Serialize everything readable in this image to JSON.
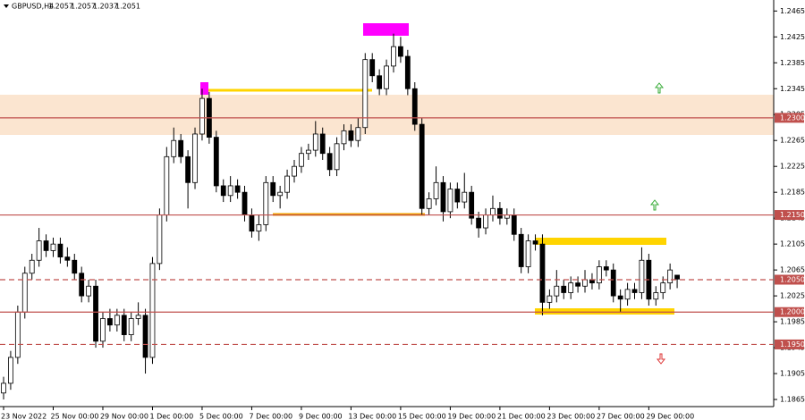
{
  "chart_data": {
    "type": "candlestick",
    "symbol": "GBPUSD,H4",
    "up_color": "#ffffff",
    "down_color": "#000000",
    "wick_color": "#000000",
    "ylim": [
      1.1854,
      1.2482
    ],
    "yticks": [
      1.2465,
      1.2425,
      1.2385,
      1.2345,
      1.2305,
      1.2265,
      1.2225,
      1.2185,
      1.2145,
      1.2105,
      1.2065,
      1.2025,
      1.1985,
      1.1945,
      1.1905,
      1.1865
    ],
    "levels": [
      {
        "value": 1.23,
        "label": "1.2300",
        "dashed": false,
        "color": "#c0504d"
      },
      {
        "value": 1.215,
        "label": "1.2150",
        "dashed": false,
        "color": "#c0504d"
      },
      {
        "value": 1.205,
        "label": "1.2050",
        "dashed": true,
        "color": "#c0504d"
      },
      {
        "value": 1.2,
        "label": "1.2000",
        "dashed": false,
        "color": "#c0504d"
      },
      {
        "value": 1.195,
        "label": "1.1950",
        "dashed": true,
        "color": "#c0504d"
      }
    ],
    "categories": [
      "23 Nov 2022",
      null,
      null,
      null,
      null,
      null,
      null,
      "25 Nov 00:00",
      null,
      null,
      null,
      null,
      null,
      null,
      "29 Nov 00:00",
      null,
      null,
      null,
      null,
      null,
      null,
      "1 Dec 00:00",
      null,
      null,
      null,
      null,
      null,
      null,
      "5 Dec 00:00",
      null,
      null,
      null,
      null,
      null,
      null,
      "7 Dec 00:00",
      null,
      null,
      null,
      null,
      null,
      null,
      "9 Dec 00:00",
      null,
      null,
      null,
      null,
      null,
      null,
      "13 Dec 00:00",
      null,
      null,
      null,
      null,
      null,
      null,
      "15 Dec 00:00",
      null,
      null,
      null,
      null,
      null,
      null,
      "19 Dec 00:00",
      null,
      null,
      null,
      null,
      null,
      null,
      "21 Dec 00:00",
      null,
      null,
      null,
      null,
      null,
      null,
      "23 Dec 00:00",
      null,
      null,
      null,
      null,
      null,
      null,
      "27 Dec 00:00",
      null,
      null,
      null,
      null,
      null,
      null,
      "29 Dec 00:00",
      null,
      null,
      null,
      null
    ],
    "ohlc": [
      [
        1.1875,
        1.19,
        1.1865,
        1.189
      ],
      [
        1.189,
        1.194,
        1.188,
        1.193
      ],
      [
        1.193,
        1.201,
        1.192,
        1.2
      ],
      [
        1.2,
        1.207,
        1.199,
        1.206
      ],
      [
        1.206,
        1.209,
        1.205,
        1.208
      ],
      [
        1.208,
        1.213,
        1.207,
        1.211
      ],
      [
        1.211,
        1.212,
        1.2085,
        1.2095
      ],
      [
        1.2095,
        1.2115,
        1.2085,
        1.2105
      ],
      [
        1.2105,
        1.2115,
        1.2075,
        1.2085
      ],
      [
        1.2085,
        1.21,
        1.207,
        1.208
      ],
      [
        1.208,
        1.209,
        1.205,
        1.206
      ],
      [
        1.206,
        1.207,
        1.2015,
        1.2025
      ],
      [
        1.2025,
        1.205,
        1.2015,
        1.204
      ],
      [
        1.204,
        1.205,
        1.1945,
        1.1955
      ],
      [
        1.1955,
        1.2,
        1.1945,
        1.199
      ],
      [
        1.199,
        1.2005,
        1.197,
        1.198
      ],
      [
        1.198,
        1.2005,
        1.197,
        1.1995
      ],
      [
        1.1995,
        1.2005,
        1.1955,
        1.1965
      ],
      [
        1.1965,
        1.2,
        1.1955,
        1.199
      ],
      [
        1.199,
        1.2015,
        1.198,
        1.1995
      ],
      [
        1.1995,
        1.2005,
        1.1905,
        1.193
      ],
      [
        1.193,
        1.2085,
        1.192,
        1.2075
      ],
      [
        1.2075,
        1.216,
        1.2065,
        1.215
      ],
      [
        1.215,
        1.2255,
        1.214,
        1.224
      ],
      [
        1.224,
        1.2285,
        1.223,
        1.2265
      ],
      [
        1.2265,
        1.2275,
        1.223,
        1.224
      ],
      [
        1.224,
        1.225,
        1.216,
        1.22
      ],
      [
        1.22,
        1.2285,
        1.219,
        1.2275
      ],
      [
        1.2275,
        1.2345,
        1.2265,
        1.233
      ],
      [
        1.233,
        1.234,
        1.226,
        1.227
      ],
      [
        1.227,
        1.228,
        1.2185,
        1.2195
      ],
      [
        1.2195,
        1.2205,
        1.217,
        1.218
      ],
      [
        1.218,
        1.221,
        1.217,
        1.2195
      ],
      [
        1.2195,
        1.2205,
        1.2175,
        1.2185
      ],
      [
        1.2185,
        1.2195,
        1.214,
        1.215
      ],
      [
        1.215,
        1.216,
        1.2115,
        1.2125
      ],
      [
        1.2125,
        1.215,
        1.211,
        1.2135
      ],
      [
        1.2135,
        1.221,
        1.2125,
        1.22
      ],
      [
        1.22,
        1.221,
        1.217,
        1.218
      ],
      [
        1.218,
        1.2195,
        1.216,
        1.2185
      ],
      [
        1.2185,
        1.222,
        1.2175,
        1.221
      ],
      [
        1.221,
        1.2235,
        1.22,
        1.2225
      ],
      [
        1.2225,
        1.2255,
        1.2215,
        1.2245
      ],
      [
        1.2245,
        1.226,
        1.2235,
        1.225
      ],
      [
        1.225,
        1.2295,
        1.224,
        1.2275
      ],
      [
        1.2275,
        1.2285,
        1.2235,
        1.2245
      ],
      [
        1.2245,
        1.2255,
        1.221,
        1.222
      ],
      [
        1.222,
        1.227,
        1.221,
        1.226
      ],
      [
        1.226,
        1.229,
        1.225,
        1.228
      ],
      [
        1.228,
        1.229,
        1.2255,
        1.2265
      ],
      [
        1.2265,
        1.23,
        1.2255,
        1.2285
      ],
      [
        1.2285,
        1.24,
        1.2275,
        1.239
      ],
      [
        1.239,
        1.24,
        1.2355,
        1.2365
      ],
      [
        1.2365,
        1.2375,
        1.2335,
        1.2345
      ],
      [
        1.2345,
        1.239,
        1.2335,
        1.238
      ],
      [
        1.238,
        1.243,
        1.237,
        1.241
      ],
      [
        1.241,
        1.2425,
        1.2385,
        1.2395
      ],
      [
        1.2395,
        1.2405,
        1.2335,
        1.2345
      ],
      [
        1.2345,
        1.2355,
        1.228,
        1.229
      ],
      [
        1.229,
        1.23,
        1.215,
        1.216
      ],
      [
        1.216,
        1.2185,
        1.215,
        1.2175
      ],
      [
        1.2175,
        1.2225,
        1.2165,
        1.22
      ],
      [
        1.22,
        1.221,
        1.214,
        1.2155
      ],
      [
        1.2155,
        1.22,
        1.2145,
        1.219
      ],
      [
        1.219,
        1.22,
        1.216,
        1.217
      ],
      [
        1.217,
        1.2215,
        1.216,
        1.2185
      ],
      [
        1.2185,
        1.2195,
        1.2135,
        1.2145
      ],
      [
        1.2145,
        1.2155,
        1.2115,
        1.213
      ],
      [
        1.213,
        1.216,
        1.212,
        1.215
      ],
      [
        1.215,
        1.218,
        1.214,
        1.216
      ],
      [
        1.216,
        1.217,
        1.2135,
        1.2145
      ],
      [
        1.2145,
        1.216,
        1.2135,
        1.215
      ],
      [
        1.215,
        1.216,
        1.211,
        1.212
      ],
      [
        1.212,
        1.213,
        1.206,
        1.207
      ],
      [
        1.207,
        1.212,
        1.206,
        1.211
      ],
      [
        1.211,
        1.212,
        1.2095,
        1.2105
      ],
      [
        1.2105,
        1.212,
        1.1995,
        1.2015
      ],
      [
        1.2015,
        1.2035,
        1.2005,
        1.2025
      ],
      [
        1.2025,
        1.2065,
        1.2015,
        1.204
      ],
      [
        1.204,
        1.205,
        1.202,
        1.203
      ],
      [
        1.203,
        1.2055,
        1.202,
        1.2045
      ],
      [
        1.2045,
        1.2055,
        1.203,
        1.204
      ],
      [
        1.204,
        1.2065,
        1.203,
        1.205
      ],
      [
        1.205,
        1.206,
        1.2035,
        1.2045
      ],
      [
        1.2045,
        1.208,
        1.2035,
        1.207
      ],
      [
        1.207,
        1.208,
        1.2055,
        1.2065
      ],
      [
        1.2065,
        1.2075,
        1.2015,
        1.2025
      ],
      [
        1.2025,
        1.2035,
        1.2,
        1.202
      ],
      [
        1.202,
        1.2045,
        1.201,
        1.2035
      ],
      [
        1.2035,
        1.2045,
        1.202,
        1.203
      ],
      [
        1.203,
        1.21,
        1.202,
        1.208
      ],
      [
        1.208,
        1.209,
        1.201,
        1.202
      ],
      [
        1.202,
        1.204,
        1.201,
        1.203
      ],
      [
        1.203,
        1.2055,
        1.202,
        1.2045
      ],
      [
        1.2045,
        1.2075,
        1.2035,
        1.2065
      ],
      [
        1.2057,
        1.2057,
        1.2037,
        1.2051
      ]
    ]
  }
}
